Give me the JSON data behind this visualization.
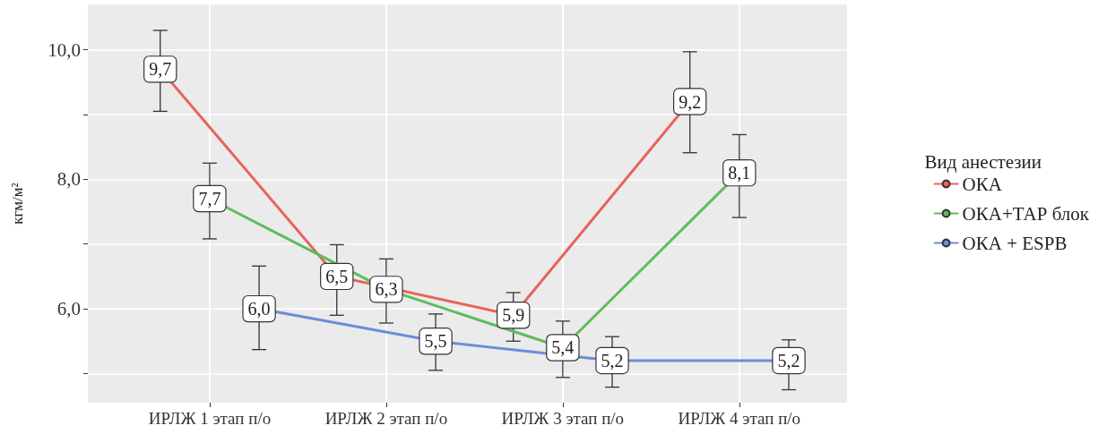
{
  "chart_data": {
    "type": "line",
    "ylabel": "кгм/м²",
    "legend_title": "Вид анестезии",
    "categories": [
      "ИРЛЖ 1 этап п/о",
      "ИРЛЖ 2 этап п/о",
      "ИРЛЖ 3 этап п/о",
      "ИРЛЖ 4 этап п/о"
    ],
    "series": [
      {
        "name": "ОКА",
        "color": "#e8635b",
        "values": [
          9.7,
          6.5,
          5.9,
          9.2
        ],
        "value_labels": [
          "9,7",
          "6,5",
          "5,9",
          "9,2"
        ],
        "errors": [
          [
            9.05,
            10.3
          ],
          [
            5.9,
            6.99
          ],
          [
            5.5,
            6.25
          ],
          [
            8.41,
            9.97
          ]
        ]
      },
      {
        "name": "ОКА+ТАР блок",
        "color": "#5cbd5c",
        "values": [
          7.7,
          6.3,
          5.4,
          8.1
        ],
        "value_labels": [
          "7,7",
          "6,3",
          "5,4",
          "8,1"
        ],
        "errors": [
          [
            7.08,
            8.25
          ],
          [
            5.78,
            6.77
          ],
          [
            4.94,
            5.81
          ],
          [
            7.41,
            8.69
          ]
        ]
      },
      {
        "name": "ОКА + ESPB",
        "color": "#6a8ed8",
        "values": [
          6.0,
          5.5,
          5.2,
          5.2
        ],
        "value_labels": [
          "6,0",
          "5,5",
          "5,2",
          "5,2"
        ],
        "errors": [
          [
            5.37,
            6.66
          ],
          [
            5.05,
            5.92
          ],
          [
            4.79,
            5.57
          ],
          [
            4.75,
            5.52
          ]
        ]
      }
    ],
    "ylim": [
      4.55,
      10.7
    ],
    "yticks": [
      {
        "value": 5,
        "label": null
      },
      {
        "value": 6,
        "label": "6,0"
      },
      {
        "value": 7,
        "label": null
      },
      {
        "value": 8,
        "label": "8,0"
      },
      {
        "value": 9,
        "label": null
      },
      {
        "value": 10,
        "label": "10,0"
      }
    ],
    "grid": true,
    "legend": "right",
    "line_style": "solid",
    "marker": "circle"
  }
}
